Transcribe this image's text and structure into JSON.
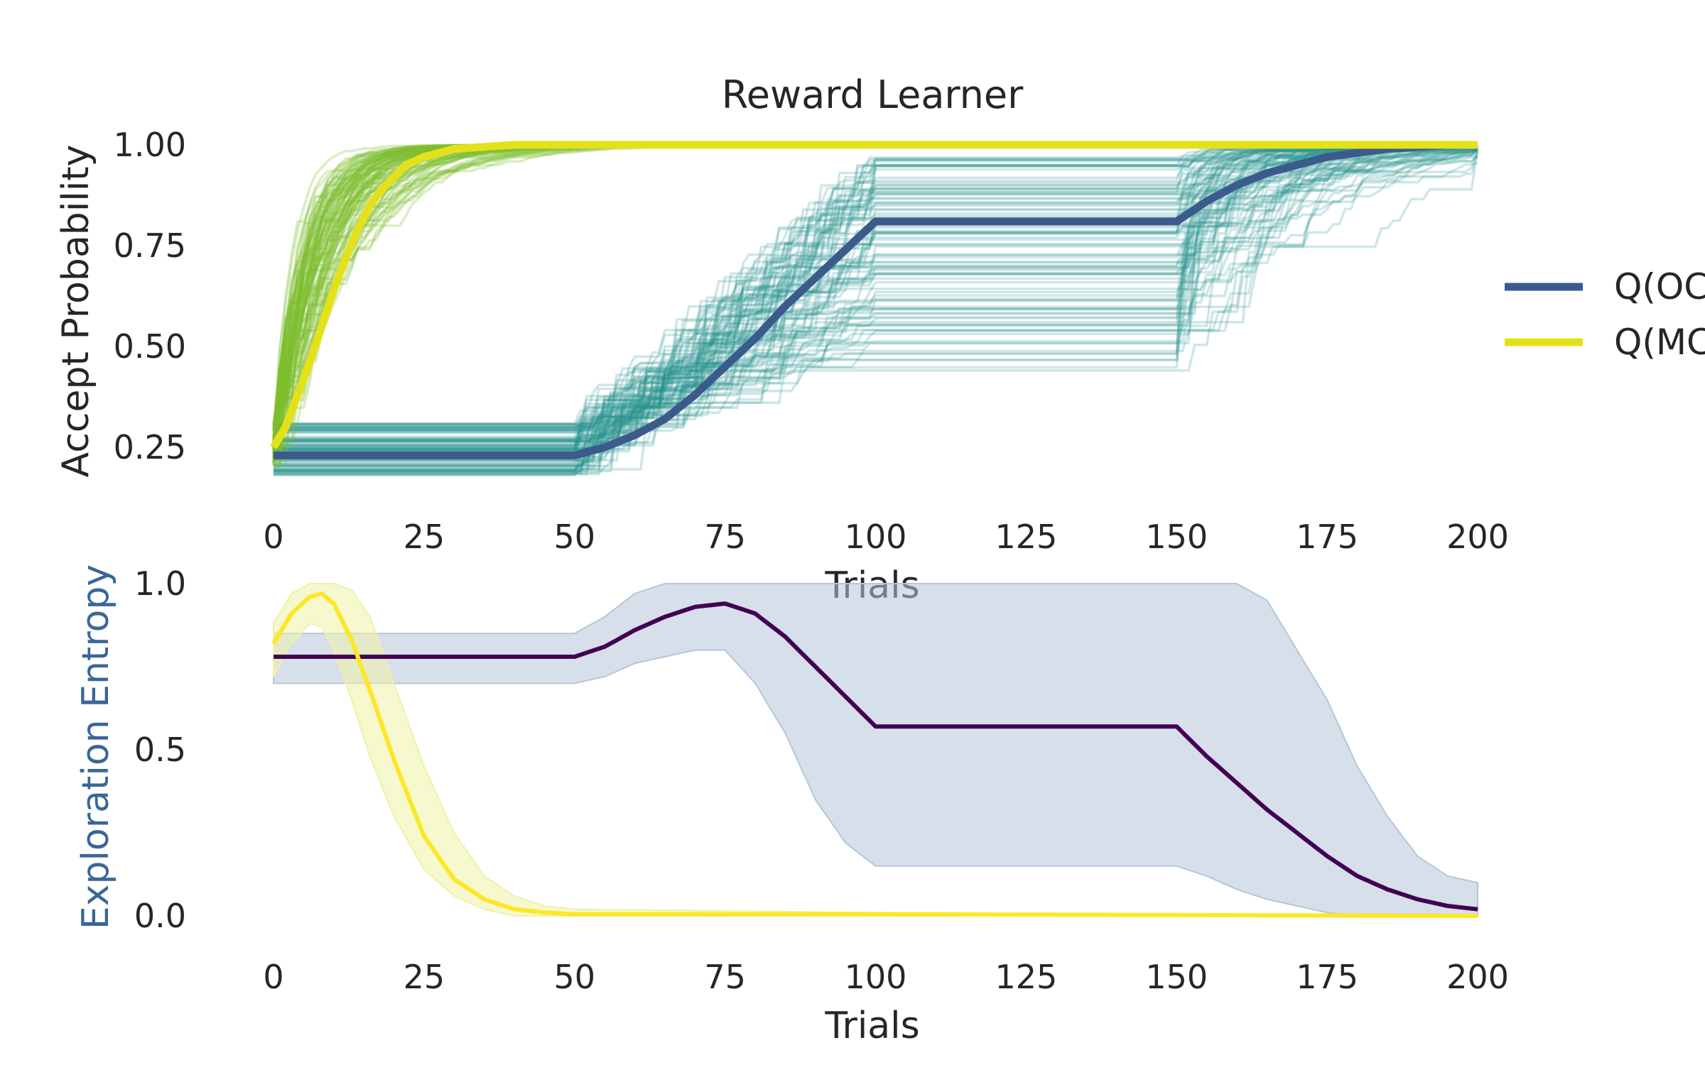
{
  "chart_data": [
    {
      "type": "line",
      "title": "Reward Learner",
      "xlabel": "Trials",
      "ylabel": "Accept Probability",
      "xlim": [
        0,
        200
      ],
      "ylim": [
        0.17,
        1.02
      ],
      "xticks": [
        "0",
        "25",
        "50",
        "75",
        "100",
        "125",
        "150",
        "175",
        "200"
      ],
      "yticks": [
        "0.25",
        "0.50",
        "0.75",
        "1.00"
      ],
      "grid": false,
      "legend_position": "right, outside",
      "series": [
        {
          "name": "Q(OC",
          "color": "#3b5b8c",
          "x": [
            0,
            50,
            55,
            60,
            65,
            70,
            75,
            80,
            85,
            90,
            95,
            100,
            150,
            155,
            160,
            165,
            170,
            175,
            180,
            185,
            190,
            195,
            200
          ],
          "y": [
            0.23,
            0.23,
            0.25,
            0.28,
            0.32,
            0.38,
            0.45,
            0.52,
            0.6,
            0.67,
            0.74,
            0.81,
            0.81,
            0.86,
            0.9,
            0.93,
            0.95,
            0.97,
            0.98,
            0.99,
            0.995,
            1.0,
            1.0
          ]
        },
        {
          "name": "Q(MC",
          "color": "#e4e11b",
          "x": [
            0,
            2,
            4,
            6,
            8,
            10,
            12,
            14,
            16,
            18,
            20,
            22,
            25,
            30,
            35,
            40,
            45,
            50,
            200
          ],
          "y": [
            0.25,
            0.3,
            0.38,
            0.46,
            0.55,
            0.64,
            0.72,
            0.79,
            0.85,
            0.89,
            0.92,
            0.95,
            0.97,
            0.99,
            0.995,
            1.0,
            1.0,
            1.0,
            1.0
          ]
        }
      ],
      "individual_trajectories": [
        {
          "group": "Q(OC",
          "color": "#23908f",
          "count": 100,
          "start_range": [
            0.18,
            0.31
          ],
          "plateau_range": [
            0.42,
            0.97
          ]
        },
        {
          "group": "Q(MC",
          "color": "#7fbf2e",
          "count": 100,
          "start_range": [
            0.2,
            0.31
          ]
        }
      ]
    },
    {
      "type": "line",
      "xlabel": "Trials",
      "ylabel": "Exploration Entropy",
      "ylabel_color": "#3a6698",
      "xlim": [
        0,
        200
      ],
      "ylim": [
        -0.05,
        1.05
      ],
      "xticks": [
        "0",
        "25",
        "50",
        "75",
        "100",
        "125",
        "150",
        "175",
        "200"
      ],
      "yticks": [
        "0.0",
        "0.5",
        "1.0"
      ],
      "grid": false,
      "series": [
        {
          "color": "#440154",
          "x": [
            0,
            50,
            55,
            60,
            65,
            70,
            75,
            80,
            85,
            90,
            95,
            100,
            150,
            155,
            160,
            165,
            170,
            175,
            180,
            185,
            190,
            195,
            200
          ],
          "y": [
            0.78,
            0.78,
            0.81,
            0.86,
            0.9,
            0.93,
            0.94,
            0.91,
            0.84,
            0.75,
            0.66,
            0.57,
            0.57,
            0.48,
            0.4,
            0.32,
            0.25,
            0.18,
            0.12,
            0.08,
            0.05,
            0.03,
            0.02
          ],
          "band_lower": [
            0.7,
            0.7,
            0.72,
            0.76,
            0.78,
            0.8,
            0.8,
            0.7,
            0.55,
            0.35,
            0.22,
            0.15,
            0.15,
            0.12,
            0.08,
            0.05,
            0.03,
            0.01,
            0.0,
            0.0,
            0.0,
            0.0,
            0.0
          ],
          "band_upper": [
            0.85,
            0.85,
            0.9,
            0.97,
            1.0,
            1.0,
            1.0,
            1.0,
            1.0,
            1.0,
            1.0,
            1.0,
            1.0,
            1.0,
            1.0,
            0.95,
            0.8,
            0.65,
            0.45,
            0.3,
            0.18,
            0.12,
            0.1
          ],
          "band_color": "#b7c5d9"
        },
        {
          "color": "#fde725",
          "x": [
            0,
            3,
            6,
            8,
            10,
            13,
            16,
            20,
            25,
            30,
            35,
            40,
            45,
            50,
            100,
            200
          ],
          "y": [
            0.82,
            0.91,
            0.96,
            0.97,
            0.94,
            0.83,
            0.68,
            0.47,
            0.24,
            0.11,
            0.05,
            0.02,
            0.01,
            0.005,
            0.005,
            0.0
          ],
          "band_lower": [
            0.72,
            0.82,
            0.88,
            0.87,
            0.8,
            0.65,
            0.48,
            0.3,
            0.14,
            0.06,
            0.02,
            0.0,
            0.0,
            0.0,
            0.0,
            0.0
          ],
          "band_upper": [
            0.88,
            0.97,
            1.0,
            1.0,
            1.0,
            0.98,
            0.9,
            0.7,
            0.45,
            0.25,
            0.12,
            0.06,
            0.03,
            0.02,
            0.01,
            0.0
          ],
          "band_color": "#eff2a6"
        }
      ]
    }
  ]
}
